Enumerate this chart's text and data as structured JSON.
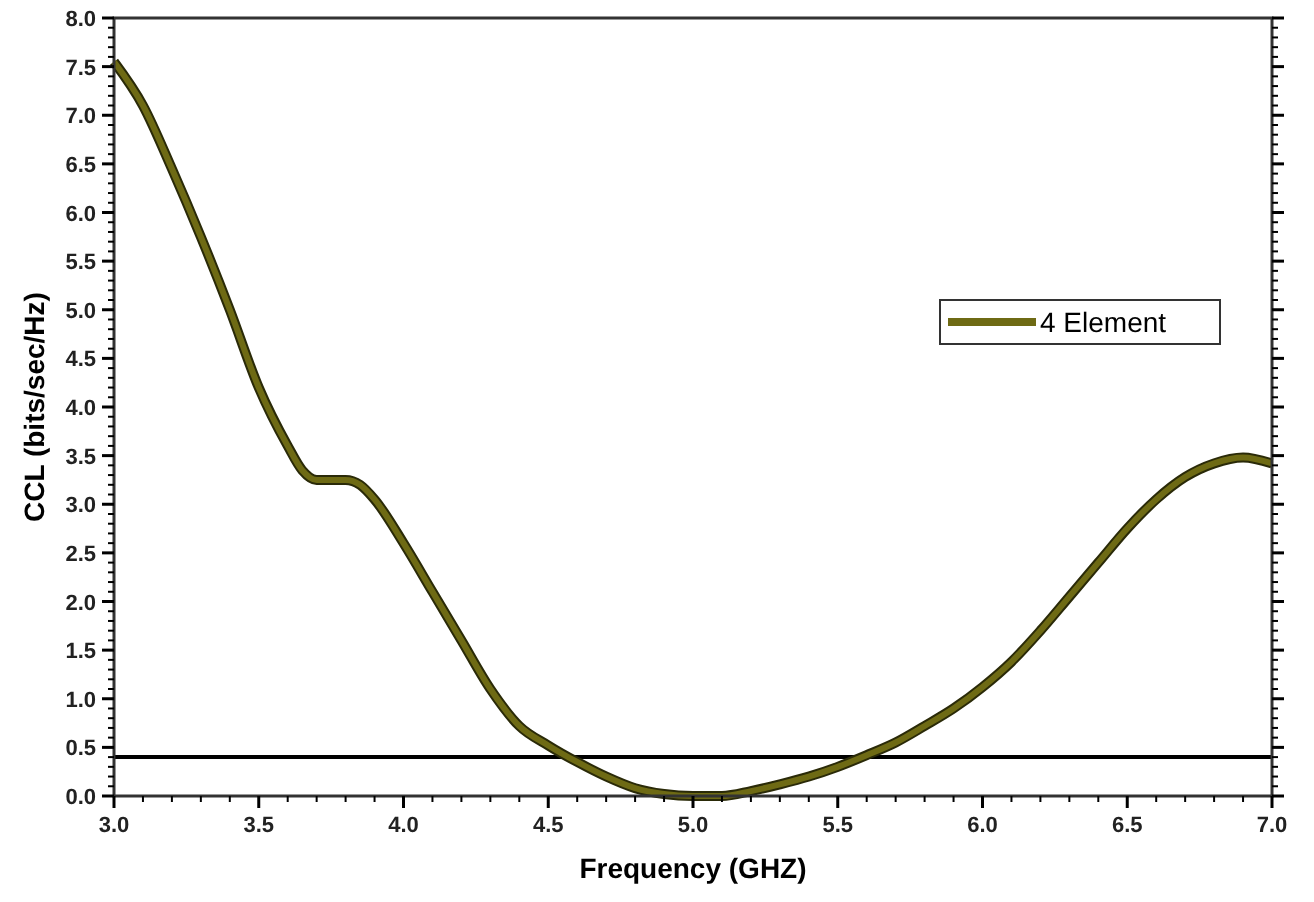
{
  "chart_data": {
    "type": "line",
    "xlabel": "Frequency (GHZ)",
    "ylabel": "CCL (bits/sec/Hz)",
    "xlim": [
      3.0,
      7.0
    ],
    "xticks": [
      {
        "value": 3,
        "label": "3.0"
      },
      {
        "value": 3.5,
        "label": "3.5"
      },
      {
        "value": 4,
        "label": "4.0"
      },
      {
        "value": 4.5,
        "label": "4.5"
      },
      {
        "value": 5,
        "label": "5.0"
      },
      {
        "value": 5.5,
        "label": "5.5"
      },
      {
        "value": 6,
        "label": "6.0"
      },
      {
        "value": 6.5,
        "label": "6.5"
      },
      {
        "value": 7,
        "label": "7.0"
      }
    ],
    "ylim": [
      0,
      8
    ],
    "yticks": [
      {
        "value": 0,
        "label": "0.0"
      },
      {
        "value": 0.5,
        "label": "0.5"
      },
      {
        "value": 1,
        "label": "1.0"
      },
      {
        "value": 1.5,
        "label": "1.5"
      },
      {
        "value": 2,
        "label": "2.0"
      },
      {
        "value": 2.5,
        "label": "2.5"
      },
      {
        "value": 3,
        "label": "3.0"
      },
      {
        "value": 3.5,
        "label": "3.5"
      },
      {
        "value": 4,
        "label": "4.0"
      },
      {
        "value": 4.5,
        "label": "4.5"
      },
      {
        "value": 5,
        "label": "5.0"
      },
      {
        "value": 5.5,
        "label": "5.5"
      },
      {
        "value": 6,
        "label": "6.0"
      },
      {
        "value": 6.5,
        "label": "6.5"
      },
      {
        "value": 7,
        "label": "7.0"
      },
      {
        "value": 7.5,
        "label": "7.5"
      },
      {
        "value": 8,
        "label": "8.0"
      }
    ],
    "x": [
      3.0,
      3.1,
      3.2,
      3.3,
      3.4,
      3.5,
      3.6,
      3.65,
      3.7,
      3.8,
      3.85,
      3.9,
      4.0,
      4.1,
      4.2,
      4.3,
      4.4,
      4.5,
      4.6,
      4.7,
      4.8,
      4.9,
      5.0,
      5.1,
      5.2,
      5.3,
      5.4,
      5.5,
      5.6,
      5.7,
      5.8,
      5.9,
      6.0,
      6.1,
      6.2,
      6.3,
      6.4,
      6.5,
      6.6,
      6.7,
      6.8,
      6.9,
      7.0
    ],
    "series": [
      {
        "name": "4 Element",
        "color": "#6e6a14",
        "values": [
          7.55,
          7.1,
          6.45,
          5.75,
          5.0,
          4.2,
          3.6,
          3.35,
          3.25,
          3.25,
          3.2,
          3.05,
          2.6,
          2.1,
          1.6,
          1.1,
          0.72,
          0.52,
          0.35,
          0.2,
          0.08,
          0.02,
          0.0,
          0.0,
          0.05,
          0.12,
          0.2,
          0.3,
          0.42,
          0.55,
          0.72,
          0.9,
          1.12,
          1.38,
          1.7,
          2.05,
          2.4,
          2.75,
          3.05,
          3.28,
          3.42,
          3.48,
          3.42
        ]
      }
    ],
    "ref_lines": [
      {
        "axis": "y",
        "value": 0.4,
        "color": "#000000"
      }
    ],
    "legend": "right",
    "grid": false,
    "line_style": "solid"
  }
}
